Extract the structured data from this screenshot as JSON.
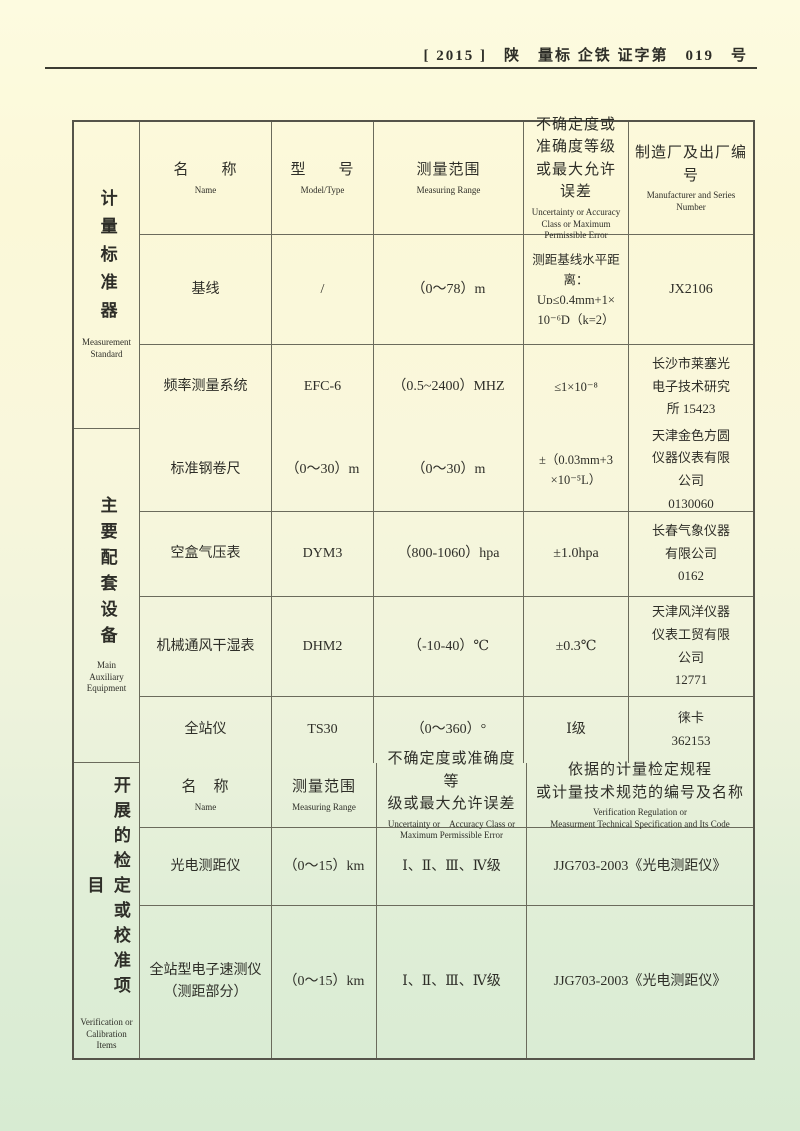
{
  "doc_header": {
    "number": "[ 2015 ]　陕　量标 企铁 证字第　019　号"
  },
  "sections": [
    {
      "side": {
        "zh": "计量标准器",
        "en": "Measurement Standard"
      },
      "headers": [
        {
          "zh": "名　　称",
          "en": "Name"
        },
        {
          "zh": "型　　号",
          "en": "Model/Type"
        },
        {
          "zh": "测量范围",
          "en": "Measuring Range"
        },
        {
          "zh": "不确定度或准确度等级或最大允许误差",
          "en": "Uncertainty or Accuracy Class or Maximum Permissible Error"
        },
        {
          "zh": "制造厂及出厂编号",
          "en": "Manufacturer and Series Number"
        }
      ],
      "rows": [
        [
          "基线",
          "/",
          "（0～78）m",
          "测距基线水平距\n离：\nUᴅ≤0.4mm+1×\n10⁻⁶D（k=2）",
          "JX2106"
        ],
        [
          "频率测量系统",
          "EFC-6",
          "（0.5~2400）MHZ",
          "≤1×10⁻⁸",
          "长沙市莱塞光\n电子技术研究\n所 15423"
        ]
      ]
    },
    {
      "side": {
        "zh": "主要配套设备",
        "en": "Main\nAuxiliary\nEquipment"
      },
      "rows": [
        [
          "标准钢卷尺",
          "（0～30）m",
          "（0～30）m",
          "±（0.03mm+3\n×10⁻⁵L）",
          "天津金色方圆\n仪器仪表有限\n公司\n0130060"
        ],
        [
          "空盒气压表",
          "DYM3",
          "（800-1060）hpa",
          "±1.0hpa",
          "长春气象仪器\n有限公司\n0162"
        ],
        [
          "机械通风干湿表",
          "DHM2",
          "（-10-40）℃",
          "±0.3℃",
          "天津风洋仪器\n仪表工贸有限\n公司\n12771"
        ],
        [
          "全站仪",
          "TS30",
          "（0～360）°",
          "Ⅰ级",
          "徕卡\n362153"
        ]
      ]
    },
    {
      "side": {
        "zh": "开展的检定或校准项目",
        "en": "Verification or\nCalibration\nItems"
      },
      "headers": [
        {
          "zh": "名　称",
          "en": "Name"
        },
        {
          "zh": "测量范围",
          "en": "Measuring Range"
        },
        {
          "zh": "不确定度或准确度等\n级或最大允许误差",
          "en": "Uncertainty or　Accuracy Class or\nMaximum Permissible Error"
        },
        {
          "zh": "依据的计量检定规程\n或计量技术规范的编号及名称",
          "en": "Verification Regulation or\nMeasurment Technical Specification and Its Code"
        }
      ],
      "rows": [
        [
          "光电测距仪",
          "（0～15）km",
          "Ⅰ、Ⅱ、Ⅲ、Ⅳ级",
          "JJG703-2003《光电测距仪》"
        ],
        [
          "全站型电子速测仪\n（测距部分）",
          "（0～15）km",
          "Ⅰ、Ⅱ、Ⅲ、Ⅳ级",
          "JJG703-2003《光电测距仪》"
        ]
      ]
    }
  ]
}
